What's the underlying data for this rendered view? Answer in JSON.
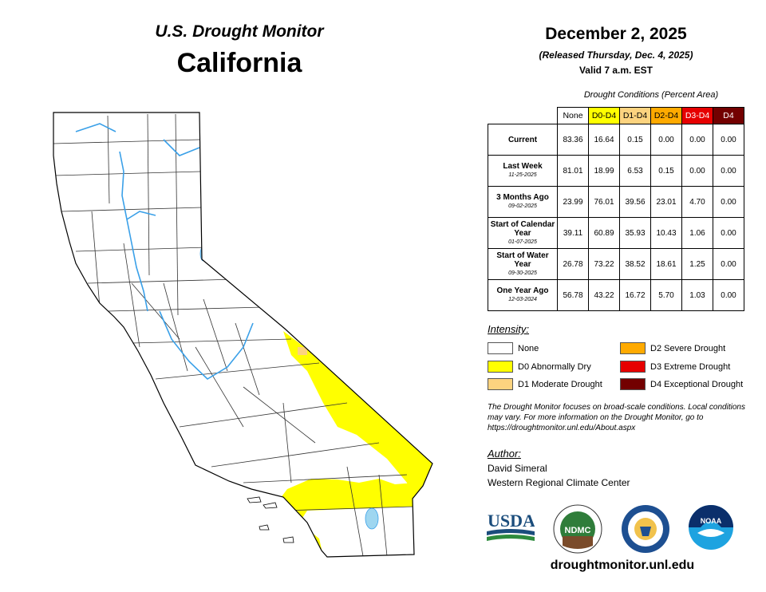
{
  "header": {
    "title": "U.S. Drought Monitor",
    "state": "California",
    "date": "December 2, 2025",
    "release": "(Released Thursday, Dec. 4, 2025)",
    "valid": "Valid 7 a.m. EST"
  },
  "table": {
    "caption": "Drought Conditions (Percent Area)",
    "columns": [
      "None",
      "D0-D4",
      "D1-D4",
      "D2-D4",
      "D3-D4",
      "D4"
    ],
    "column_colors": [
      "#ffffff",
      "#ffff00",
      "#fcd37f",
      "#ffaa00",
      "#e60000",
      "#730000"
    ],
    "rows": [
      {
        "label": "Current",
        "sublabel": "",
        "values": [
          "83.36",
          "16.64",
          "0.15",
          "0.00",
          "0.00",
          "0.00"
        ]
      },
      {
        "label": "Last Week",
        "sublabel": "11-25-2025",
        "values": [
          "81.01",
          "18.99",
          "6.53",
          "0.15",
          "0.00",
          "0.00"
        ]
      },
      {
        "label": "3 Months Ago",
        "sublabel": "09-02-2025",
        "values": [
          "23.99",
          "76.01",
          "39.56",
          "23.01",
          "4.70",
          "0.00"
        ]
      },
      {
        "label": "Start of Calendar Year",
        "sublabel": "01-07-2025",
        "values": [
          "39.11",
          "60.89",
          "35.93",
          "10.43",
          "1.06",
          "0.00"
        ]
      },
      {
        "label": "Start of Water Year",
        "sublabel": "09-30-2025",
        "values": [
          "26.78",
          "73.22",
          "38.52",
          "18.61",
          "1.25",
          "0.00"
        ]
      },
      {
        "label": "One Year Ago",
        "sublabel": "12-03-2024",
        "values": [
          "56.78",
          "43.22",
          "16.72",
          "5.70",
          "1.03",
          "0.00"
        ]
      }
    ]
  },
  "legend": {
    "title": "Intensity:",
    "items": [
      {
        "label": "None",
        "color": "#ffffff"
      },
      {
        "label": "D0 Abnormally Dry",
        "color": "#ffff00"
      },
      {
        "label": "D1 Moderate Drought",
        "color": "#fcd37f"
      },
      {
        "label": "D2 Severe Drought",
        "color": "#ffaa00"
      },
      {
        "label": "D3 Extreme Drought",
        "color": "#e60000"
      },
      {
        "label": "D4 Exceptional Drought",
        "color": "#730000"
      }
    ]
  },
  "note": "The Drought Monitor focuses on broad-scale conditions. Local conditions may vary. For more information on the Drought Monitor, go to https://droughtmonitor.unl.edu/About.aspx",
  "author": {
    "title": "Author:",
    "name": "David Simeral",
    "org": "Western Regional Climate Center"
  },
  "logos": {
    "usda": "USDA",
    "ndmc": "NDMC",
    "noaa": "NOAA"
  },
  "site": "droughtmonitor.unl.edu",
  "map": {
    "water_color": "#3aa0e8",
    "lake_color": "#9ed6f0"
  }
}
